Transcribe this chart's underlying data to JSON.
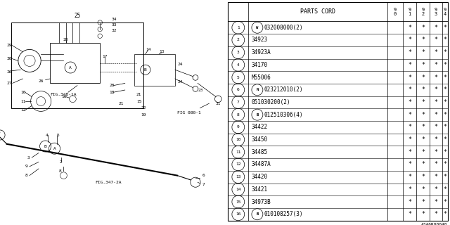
{
  "fig_code": "A346R00048",
  "rows": [
    {
      "num": "1",
      "prefix": "W",
      "part": "032008000(2)",
      "stars": [
        "",
        "*",
        "*",
        "*",
        "*"
      ]
    },
    {
      "num": "2",
      "prefix": "",
      "part": "34923",
      "stars": [
        "",
        "*",
        "*",
        "*",
        "*"
      ]
    },
    {
      "num": "3",
      "prefix": "",
      "part": "34923A",
      "stars": [
        "",
        "*",
        "*",
        "*",
        "*"
      ]
    },
    {
      "num": "4",
      "prefix": "",
      "part": "34170",
      "stars": [
        "",
        "*",
        "*",
        "*",
        "*"
      ]
    },
    {
      "num": "5",
      "prefix": "",
      "part": "M55006",
      "stars": [
        "",
        "*",
        "*",
        "*",
        "*"
      ]
    },
    {
      "num": "6",
      "prefix": "N",
      "part": "023212010(2)",
      "stars": [
        "",
        "*",
        "*",
        "*",
        "*"
      ]
    },
    {
      "num": "7",
      "prefix": "",
      "part": "051030200(2)",
      "stars": [
        "",
        "*",
        "*",
        "*",
        "*"
      ]
    },
    {
      "num": "8",
      "prefix": "B",
      "part": "012510306(4)",
      "stars": [
        "",
        "*",
        "*",
        "*",
        "*"
      ]
    },
    {
      "num": "9",
      "prefix": "",
      "part": "34422",
      "stars": [
        "",
        "*",
        "*",
        "*",
        "*"
      ]
    },
    {
      "num": "10",
      "prefix": "",
      "part": "34450",
      "stars": [
        "",
        "*",
        "*",
        "*",
        "*"
      ]
    },
    {
      "num": "11",
      "prefix": "",
      "part": "34485",
      "stars": [
        "",
        "*",
        "*",
        "*",
        "*"
      ]
    },
    {
      "num": "12",
      "prefix": "",
      "part": "34487A",
      "stars": [
        "",
        "*",
        "*",
        "*",
        "*"
      ]
    },
    {
      "num": "13",
      "prefix": "",
      "part": "34420",
      "stars": [
        "",
        "*",
        "*",
        "*",
        "*"
      ]
    },
    {
      "num": "14",
      "prefix": "",
      "part": "34421",
      "stars": [
        "",
        "*",
        "*",
        "*",
        "*"
      ]
    },
    {
      "num": "15",
      "prefix": "",
      "part": "34973B",
      "stars": [
        "",
        "*",
        "*",
        "*",
        "*"
      ]
    },
    {
      "num": "16",
      "prefix": "B",
      "part": "010108257(3)",
      "stars": [
        "",
        "*",
        "*",
        "*",
        "*"
      ]
    }
  ],
  "col_headers": [
    "9\n0",
    "9\n1",
    "9\n2",
    "9\n3",
    "9\n4"
  ],
  "bg_color": "#ffffff",
  "line_color": "#000000",
  "font_family": "monospace",
  "font_size": 6.5
}
